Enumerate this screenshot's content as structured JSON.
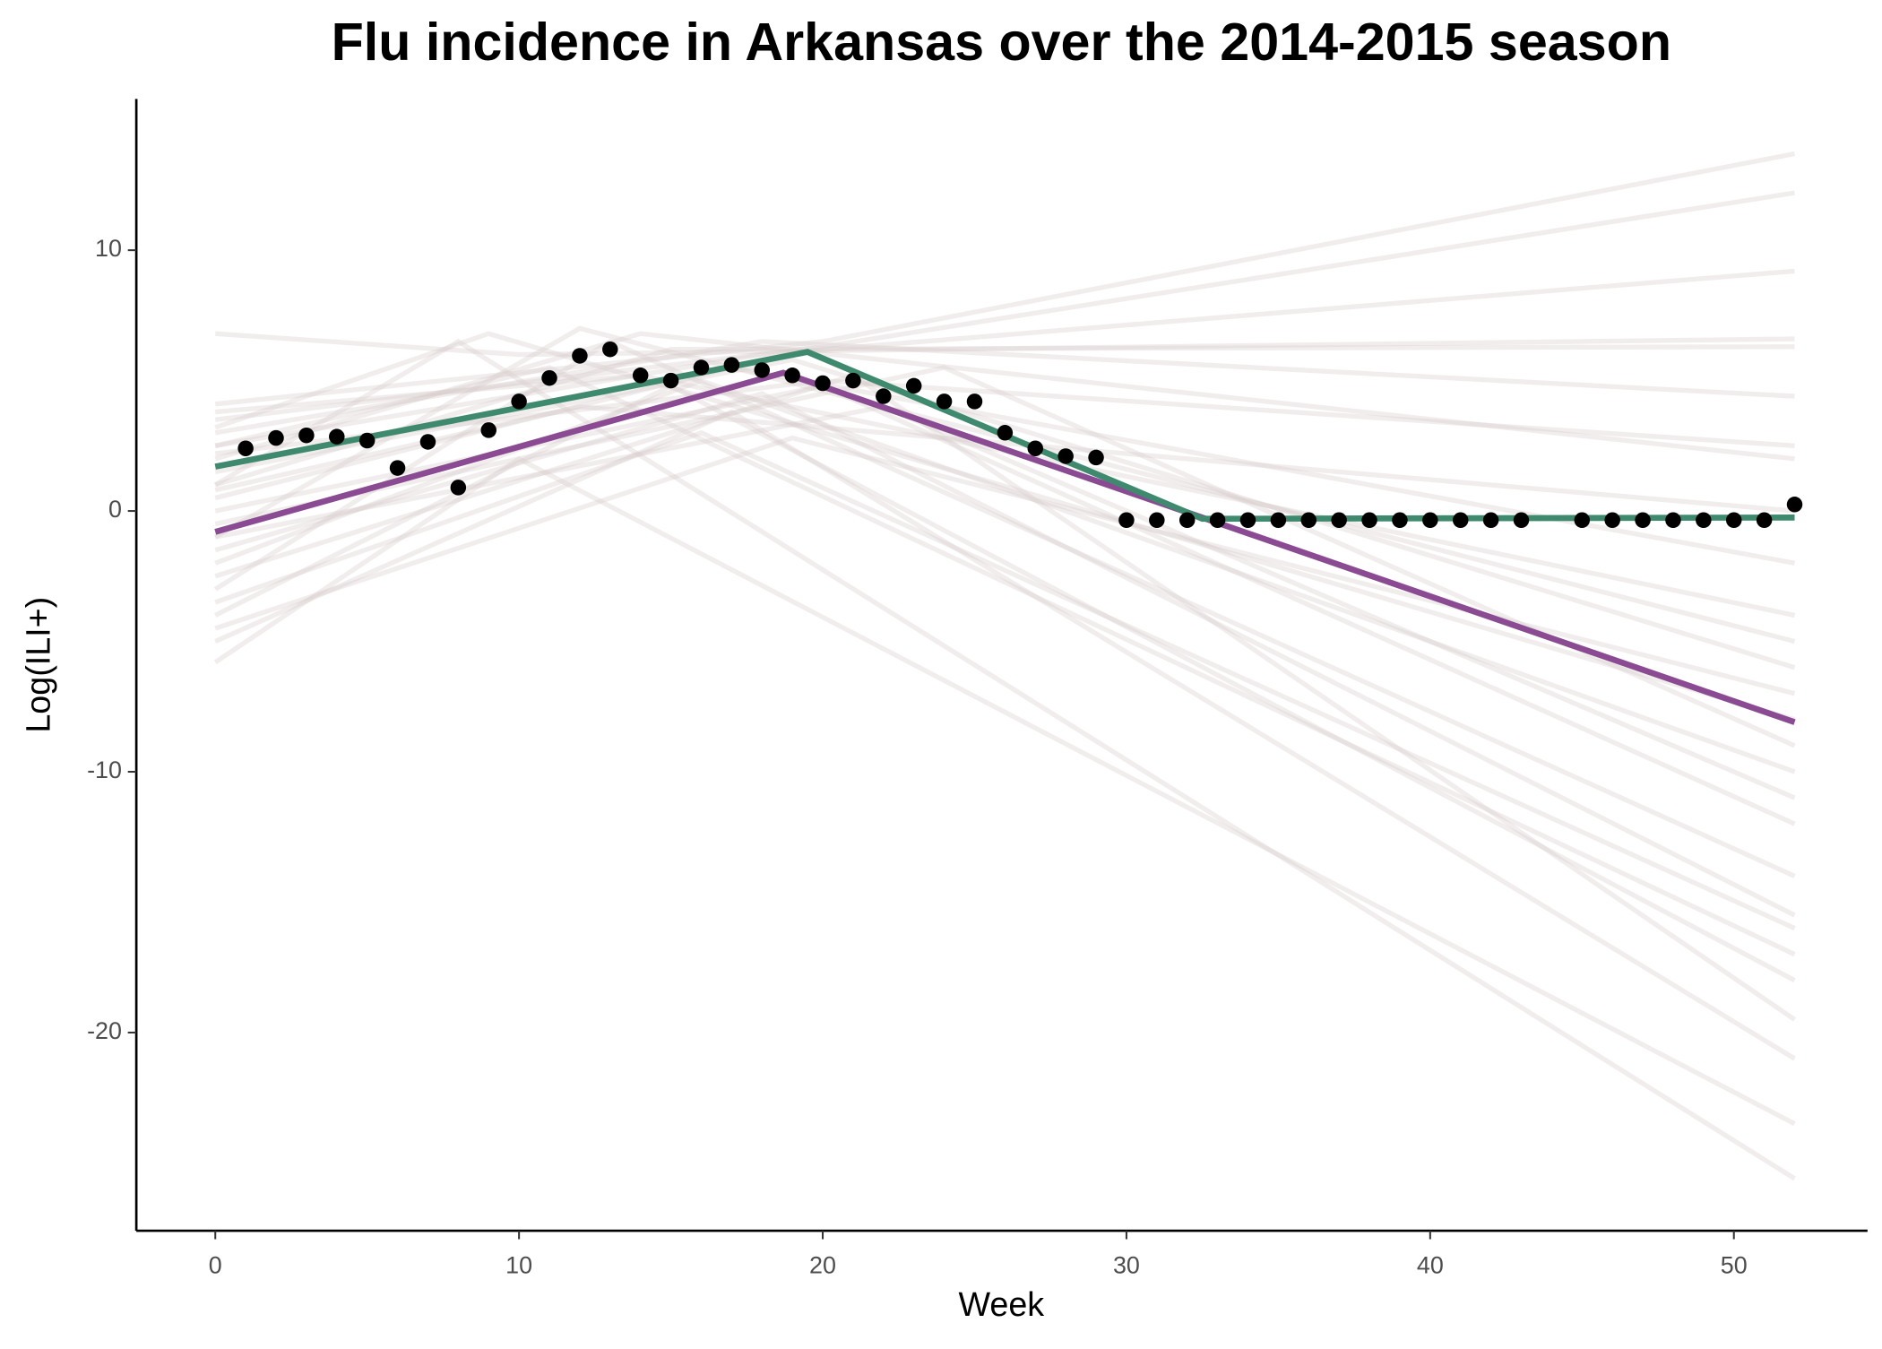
{
  "chart_data": {
    "type": "line",
    "title": "Flu incidence in Arkansas over the 2014-2015 season",
    "x_label": "Week",
    "y_label": "Log(ILI+)",
    "xlim": [
      -2.6,
      54.4
    ],
    "ylim": [
      -27.6,
      15.8
    ],
    "xticks": [
      0,
      10,
      20,
      30,
      40,
      50
    ],
    "yticks": [
      -20,
      -10,
      0,
      10
    ],
    "grid": false,
    "series": [
      {
        "type": "line",
        "color": "#d6cccc",
        "opacity": 0.35,
        "x": [
          0,
          20,
          52
        ],
        "values": [
          4.1,
          6.5,
          13.7
        ]
      },
      {
        "type": "line",
        "color": "#d6cccc",
        "opacity": 0.35,
        "x": [
          0,
          20,
          52
        ],
        "values": [
          3.5,
          6.3,
          12.2
        ]
      },
      {
        "type": "line",
        "color": "#d6cccc",
        "opacity": 0.35,
        "x": [
          0,
          18,
          52
        ],
        "values": [
          2.5,
          6.0,
          9.2
        ]
      },
      {
        "type": "line",
        "color": "#d6cccc",
        "opacity": 0.35,
        "x": [
          0,
          10,
          52
        ],
        "values": [
          6.8,
          6.0,
          6.6
        ]
      },
      {
        "type": "line",
        "color": "#d6cccc",
        "opacity": 0.35,
        "x": [
          0,
          15,
          52
        ],
        "values": [
          1.0,
          6.2,
          6.3
        ]
      },
      {
        "type": "line",
        "color": "#d6cccc",
        "opacity": 0.35,
        "x": [
          0,
          18,
          52
        ],
        "values": [
          3.0,
          6.5,
          4.4
        ]
      },
      {
        "type": "line",
        "color": "#d6cccc",
        "opacity": 0.35,
        "x": [
          0,
          14,
          52
        ],
        "values": [
          2.0,
          6.8,
          2.0
        ]
      },
      {
        "type": "line",
        "color": "#d6cccc",
        "opacity": 0.35,
        "x": [
          0,
          17,
          52
        ],
        "values": [
          0.5,
          5.5,
          -2.0
        ]
      },
      {
        "type": "line",
        "color": "#d6cccc",
        "opacity": 0.35,
        "x": [
          0,
          12,
          52
        ],
        "values": [
          -1.0,
          7.0,
          -5.0
        ]
      },
      {
        "type": "line",
        "color": "#d6cccc",
        "opacity": 0.35,
        "x": [
          0,
          19,
          52
        ],
        "values": [
          1.5,
          5.8,
          -6.0
        ]
      },
      {
        "type": "line",
        "color": "#d6cccc",
        "opacity": 0.35,
        "x": [
          0,
          9,
          52
        ],
        "values": [
          3.2,
          6.8,
          -8.0
        ]
      },
      {
        "type": "line",
        "color": "#d6cccc",
        "opacity": 0.35,
        "x": [
          0,
          16,
          52
        ],
        "values": [
          -2.0,
          5.0,
          -10.0
        ]
      },
      {
        "type": "line",
        "color": "#d6cccc",
        "opacity": 0.35,
        "x": [
          0,
          20,
          52
        ],
        "values": [
          0.0,
          4.8,
          -12.0
        ]
      },
      {
        "type": "line",
        "color": "#d6cccc",
        "opacity": 0.35,
        "x": [
          0,
          13,
          52
        ],
        "values": [
          -3.0,
          6.5,
          -14.0
        ]
      },
      {
        "type": "line",
        "color": "#d6cccc",
        "opacity": 0.35,
        "x": [
          0,
          18,
          52
        ],
        "values": [
          -1.5,
          4.5,
          -15.5
        ]
      },
      {
        "type": "line",
        "color": "#d6cccc",
        "opacity": 0.35,
        "x": [
          0,
          11,
          52
        ],
        "values": [
          2.5,
          5.5,
          -17.0
        ]
      },
      {
        "type": "line",
        "color": "#d6cccc",
        "opacity": 0.35,
        "x": [
          0,
          15,
          52
        ],
        "values": [
          -4.0,
          4.8,
          -18.0
        ]
      },
      {
        "type": "line",
        "color": "#d6cccc",
        "opacity": 0.35,
        "x": [
          0,
          21,
          52
        ],
        "values": [
          -2.5,
          5.2,
          -19.5
        ]
      },
      {
        "type": "line",
        "color": "#d6cccc",
        "opacity": 0.35,
        "x": [
          0,
          17,
          52
        ],
        "values": [
          -5.0,
          3.8,
          -21.0
        ]
      },
      {
        "type": "line",
        "color": "#d6cccc",
        "opacity": 0.35,
        "x": [
          0,
          10,
          52
        ],
        "values": [
          -5.8,
          2.0,
          -23.5
        ]
      },
      {
        "type": "line",
        "color": "#d6cccc",
        "opacity": 0.35,
        "x": [
          0,
          8,
          52
        ],
        "values": [
          1.0,
          6.5,
          -25.6
        ]
      },
      {
        "type": "line",
        "color": "#d6cccc",
        "opacity": 0.35,
        "x": [
          0,
          16,
          52
        ],
        "values": [
          -3.5,
          3.0,
          -16.0
        ]
      },
      {
        "type": "line",
        "color": "#d6cccc",
        "opacity": 0.35,
        "x": [
          0,
          22,
          52
        ],
        "values": [
          -1.0,
          4.0,
          -11.0
        ]
      },
      {
        "type": "line",
        "color": "#d6cccc",
        "opacity": 0.35,
        "x": [
          0,
          14,
          52
        ],
        "values": [
          3.8,
          5.2,
          -4.0
        ]
      },
      {
        "type": "line",
        "color": "#d6cccc",
        "opacity": 0.35,
        "x": [
          0,
          19,
          52
        ],
        "values": [
          -4.5,
          2.8,
          -7.0
        ]
      },
      {
        "type": "line",
        "color": "#d6cccc",
        "opacity": 0.35,
        "x": [
          0,
          12,
          52
        ],
        "values": [
          0.8,
          4.0,
          0.0
        ]
      },
      {
        "type": "line",
        "color": "#d6cccc",
        "opacity": 0.35,
        "x": [
          0,
          20,
          52
        ],
        "values": [
          2.2,
          5.0,
          2.5
        ]
      },
      {
        "type": "line",
        "color": "#d6cccc",
        "opacity": 0.35,
        "x": [
          0,
          24,
          52
        ],
        "values": [
          -0.5,
          5.5,
          -9.0
        ]
      },
      {
        "type": "line",
        "color": "#8a4b93",
        "opacity": 1,
        "x": [
          0,
          18.7,
          52
        ],
        "values": [
          -0.8,
          5.3,
          -8.1
        ]
      },
      {
        "type": "line",
        "color": "#3f8a6e",
        "opacity": 1,
        "x": [
          0,
          19.5,
          32.5,
          52
        ],
        "values": [
          1.7,
          6.1,
          -0.3,
          -0.25
        ]
      },
      {
        "type": "scatter",
        "color": "#000000",
        "opacity": 1,
        "x": [
          1,
          2,
          3,
          4,
          5,
          6,
          7,
          8,
          9,
          10,
          11,
          12,
          13,
          14,
          15,
          16,
          17,
          18,
          19,
          20,
          21,
          22,
          23,
          24,
          25,
          26,
          27,
          28,
          29,
          30,
          31,
          32,
          33,
          34,
          35,
          36,
          37,
          38,
          39,
          40,
          41,
          42,
          43,
          45,
          46,
          47,
          48,
          49,
          50,
          51,
          52
        ],
        "values": [
          2.4,
          2.8,
          2.9,
          2.85,
          2.7,
          1.65,
          2.65,
          0.9,
          3.1,
          4.2,
          5.1,
          5.95,
          6.2,
          5.2,
          5.0,
          5.5,
          5.6,
          5.4,
          5.2,
          4.9,
          5.0,
          4.4,
          4.8,
          4.2,
          4.2,
          3.0,
          2.4,
          2.1,
          2.05,
          -0.35,
          -0.35,
          -0.35,
          -0.35,
          -0.35,
          -0.35,
          -0.35,
          -0.35,
          -0.35,
          -0.35,
          -0.35,
          -0.35,
          -0.35,
          -0.35,
          -0.35,
          -0.35,
          -0.35,
          -0.35,
          -0.35,
          -0.35,
          -0.35,
          0.25
        ]
      }
    ]
  }
}
